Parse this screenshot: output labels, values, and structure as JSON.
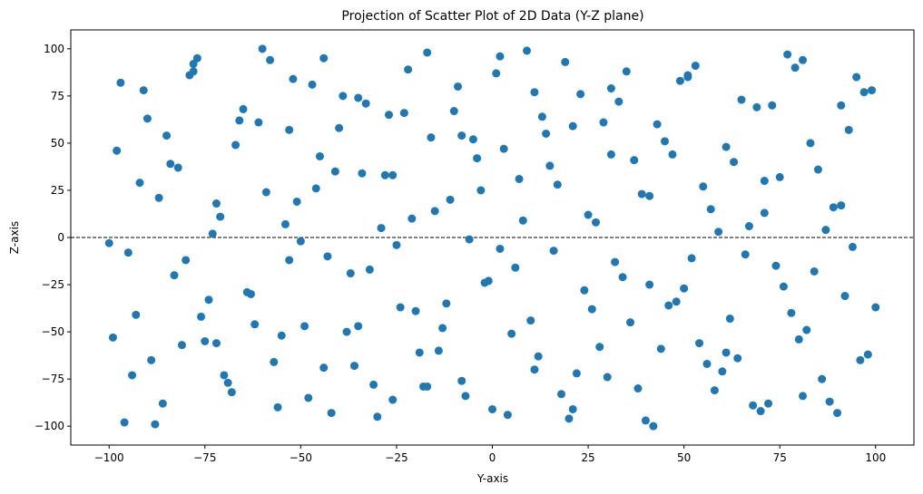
{
  "chart_data": {
    "type": "scatter",
    "title": "Projection of Scatter Plot of 2D Data (Y-Z plane)",
    "xlabel": "Y-axis",
    "ylabel": "Z-axis",
    "xlim": [
      -110,
      110
    ],
    "ylim": [
      -110,
      110
    ],
    "xticks": [
      -100,
      -75,
      -50,
      -25,
      0,
      25,
      50,
      75,
      100
    ],
    "yticks": [
      -100,
      -75,
      -50,
      -25,
      0,
      25,
      50,
      75,
      100
    ],
    "grid": false,
    "point_color": "#1f77b4",
    "reference_line": {
      "y": 0,
      "style": "dashed",
      "color": "#000000"
    },
    "series": [
      {
        "x": [
          -97,
          -93,
          -90,
          -86,
          -82,
          -80,
          -77,
          -75,
          -72,
          -70,
          -67,
          -64,
          -60,
          -57,
          -54,
          -52,
          -49,
          -46,
          -42,
          -40,
          -37,
          -33,
          -31,
          -28,
          -25,
          -22,
          -19,
          -15,
          -12,
          -10,
          -7,
          -4,
          -1,
          2,
          5,
          8,
          11,
          14,
          17,
          20,
          23,
          26,
          29,
          32,
          35,
          38,
          41,
          44,
          47,
          50,
          53,
          56,
          59,
          62,
          65,
          68,
          71,
          74,
          77,
          80,
          83,
          86,
          89,
          92,
          95,
          98,
          -98,
          -95,
          -91,
          -88,
          -84,
          -81,
          -78,
          -74,
          -71,
          -68,
          -65,
          -62,
          -59,
          -56,
          -53,
          -50,
          -47,
          -44,
          -41,
          -38,
          -35,
          -32,
          -29,
          -26,
          -23,
          -20,
          -17,
          -14,
          -11,
          -8,
          -5,
          -2,
          1,
          4,
          7,
          10,
          13,
          16,
          19,
          22,
          25,
          28,
          31,
          34,
          37,
          40,
          43,
          46,
          49,
          52,
          55,
          58,
          61,
          64,
          67,
          70,
          73,
          76,
          79,
          82,
          85,
          88,
          91,
          94,
          97,
          -99,
          -96,
          -92,
          -89,
          -85,
          -83,
          -79,
          -76,
          -73,
          -69,
          -66,
          -63,
          -58,
          -55,
          -51,
          -48,
          -45,
          -43,
          -39,
          -36,
          -34,
          -30,
          -27,
          -24,
          -21,
          -18,
          -16,
          -13,
          -9,
          -6,
          -3,
          0,
          3,
          6,
          9,
          12,
          15,
          18,
          21,
          24,
          27,
          30,
          33,
          36,
          39,
          42,
          45,
          48,
          51,
          54,
          57,
          60,
          63,
          66,
          69,
          72,
          75,
          78,
          81,
          84,
          87,
          90,
          93,
          96,
          99,
          -100,
          -94,
          -87,
          -78,
          -72,
          -61,
          -53,
          -44,
          -35,
          -26,
          -17,
          -8,
          2,
          11,
          21,
          31,
          41,
          51,
          61,
          71,
          81,
          91,
          100
        ],
        "y": [
          82,
          -41,
          63,
          -88,
          37,
          -12,
          95,
          -55,
          18,
          -73,
          49,
          -29,
          100,
          -66,
          7,
          84,
          -47,
          26,
          -93,
          58,
          -19,
          71,
          -78,
          33,
          -4,
          89,
          -61,
          14,
          -35,
          67,
          -84,
          42,
          -23,
          96,
          -51,
          9,
          -70,
          55,
          28,
          -96,
          76,
          -38,
          61,
          -13,
          88,
          -80,
          22,
          -59,
          44,
          -27,
          91,
          -67,
          3,
          -43,
          73,
          -89,
          30,
          -15,
          97,
          -54,
          50,
          -75,
          16,
          -31,
          85,
          -62,
          46,
          -8,
          78,
          -99,
          39,
          -57,
          92,
          -33,
          11,
          -82,
          68,
          -46,
          24,
          -90,
          57,
          -2,
          81,
          -69,
          35,
          -50,
          74,
          -17,
          5,
          -86,
          66,
          -39,
          98,
          -60,
          20,
          -76,
          52,
          -24,
          87,
          -94,
          31,
          -44,
          64,
          -7,
          93,
          -72,
          12,
          -58,
          79,
          -21,
          41,
          -97,
          60,
          -36,
          83,
          -11,
          27,
          -81,
          48,
          -64,
          6,
          -92,
          70,
          -26,
          90,
          -49,
          36,
          -87,
          17,
          -5,
          77,
          -53,
          -98,
          29,
          -65,
          54,
          -20,
          86,
          -42,
          2,
          -77,
          62,
          -30,
          94,
          -52,
          19,
          -85,
          43,
          -10,
          75,
          -68,
          34,
          -95,
          65,
          -37,
          10,
          -79,
          53,
          -48,
          80,
          -1,
          25,
          -91,
          47,
          -16,
          99,
          -63,
          38,
          -83,
          59,
          -28,
          8,
          -74,
          72,
          -45,
          23,
          -100,
          51,
          -34,
          85,
          -56,
          15,
          -71,
          40,
          -9,
          69,
          -88,
          32,
          -40,
          94,
          -18,
          4,
          -93,
          57,
          -65,
          78,
          -3,
          -73,
          21,
          88,
          -56,
          61,
          -12,
          95,
          -47,
          33,
          -79,
          54,
          -6,
          77,
          -91,
          44,
          -25,
          86,
          -61,
          13,
          -84,
          70,
          -37
        ],
        "name": ""
      }
    ]
  }
}
